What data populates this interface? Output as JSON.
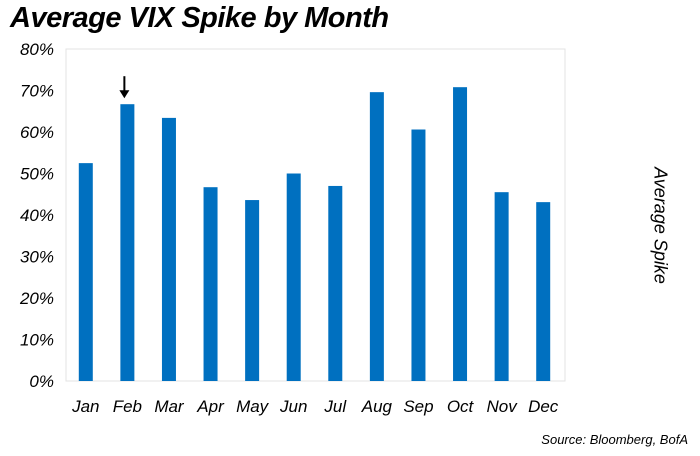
{
  "chart_data": {
    "type": "bar",
    "title": "Average VIX Spike by Month",
    "xlabel": "",
    "ylabel": "Average Spike",
    "categories": [
      "Jan",
      "Feb",
      "Mar",
      "Apr",
      "May",
      "Jun",
      "Jul",
      "Aug",
      "Sep",
      "Oct",
      "Nov",
      "Dec"
    ],
    "values": [
      52.5,
      66.7,
      63.4,
      46.7,
      43.6,
      50.0,
      47.0,
      69.6,
      60.6,
      70.8,
      45.5,
      43.1
    ],
    "ylim": [
      0,
      80
    ],
    "yticks": [
      "0%",
      "10%",
      "20%",
      "30%",
      "40%",
      "50%",
      "60%",
      "70%",
      "80%"
    ],
    "grid": false,
    "annotations": [
      {
        "type": "arrow",
        "category": "Feb"
      }
    ],
    "bar_color": "#0070C0",
    "source": "Source: Bloomberg, BofA"
  }
}
